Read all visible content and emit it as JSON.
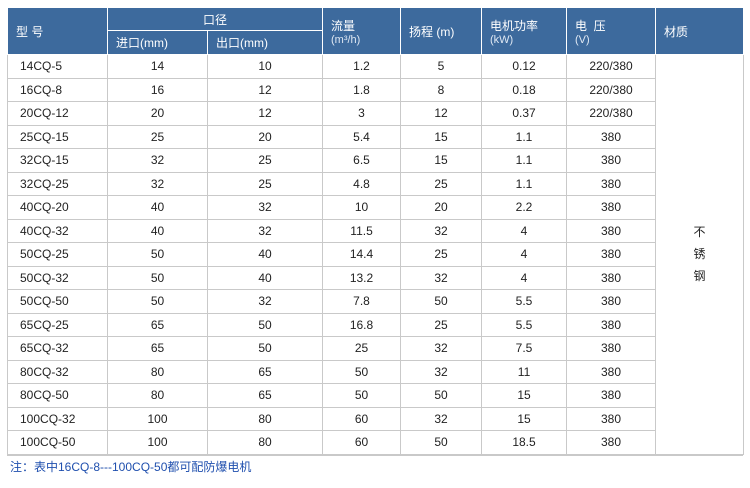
{
  "headers": {
    "model": "型 号",
    "caliber": "口径",
    "inlet": "进口(mm)",
    "outlet": "出口(mm)",
    "flow": "流量",
    "flow_unit": "(m³/h)",
    "head": "扬程 (m)",
    "power": "电机功率",
    "power_unit": "(kW)",
    "voltage": "电  压",
    "voltage_unit": "(V)",
    "material": "材质"
  },
  "material_value": [
    "不",
    "锈",
    "钢"
  ],
  "rows": [
    [
      "14CQ-5",
      "14",
      "10",
      "1.2",
      "5",
      "0.12",
      "220/380"
    ],
    [
      "16CQ-8",
      "16",
      "12",
      "1.8",
      "8",
      "0.18",
      "220/380"
    ],
    [
      "20CQ-12",
      "20",
      "12",
      "3",
      "12",
      "0.37",
      "220/380"
    ],
    [
      "25CQ-15",
      "25",
      "20",
      "5.4",
      "15",
      "1.1",
      "380"
    ],
    [
      "32CQ-15",
      "32",
      "25",
      "6.5",
      "15",
      "1.1",
      "380"
    ],
    [
      "32CQ-25",
      "32",
      "25",
      "4.8",
      "25",
      "1.1",
      "380"
    ],
    [
      "40CQ-20",
      "40",
      "32",
      "10",
      "20",
      "2.2",
      "380"
    ],
    [
      "40CQ-32",
      "40",
      "32",
      "11.5",
      "32",
      "4",
      "380"
    ],
    [
      "50CQ-25",
      "50",
      "40",
      "14.4",
      "25",
      "4",
      "380"
    ],
    [
      "50CQ-32",
      "50",
      "40",
      "13.2",
      "32",
      "4",
      "380"
    ],
    [
      "50CQ-50",
      "50",
      "32",
      "7.8",
      "50",
      "5.5",
      "380"
    ],
    [
      "65CQ-25",
      "65",
      "50",
      "16.8",
      "25",
      "5.5",
      "380"
    ],
    [
      "65CQ-32",
      "65",
      "50",
      "25",
      "32",
      "7.5",
      "380"
    ],
    [
      "80CQ-32",
      "80",
      "65",
      "50",
      "32",
      "11",
      "380"
    ],
    [
      "80CQ-50",
      "80",
      "65",
      "50",
      "50",
      "15",
      "380"
    ],
    [
      "100CQ-32",
      "100",
      "80",
      "60",
      "32",
      "15",
      "380"
    ],
    [
      "100CQ-50",
      "100",
      "80",
      "60",
      "50",
      "18.5",
      "380"
    ]
  ],
  "note": "注：表中16CQ-8---100CQ-50都可配防爆电机",
  "colors": {
    "header_bg": "#3d6a9d",
    "note_text": "#1f4fae"
  }
}
